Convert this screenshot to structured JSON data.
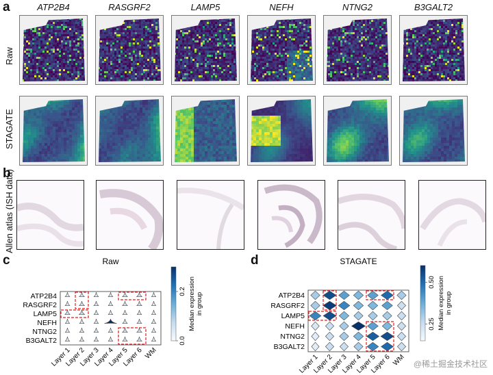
{
  "panels": {
    "a": "a",
    "b": "b",
    "c": "c",
    "d": "d"
  },
  "genes": [
    "ATP2B4",
    "RASGRF2",
    "LAMP5",
    "NEFH",
    "NTNG2",
    "B3GALT2"
  ],
  "row_labels": {
    "raw": "Raw",
    "stagate": "STAGATE",
    "allen": "Allen atlas (ISH data)"
  },
  "colors": {
    "viridis_dark": "#440154",
    "viridis_mid": "#21918c",
    "viridis_bright": "#fde725",
    "blues_dark": "#08306b",
    "highlight_box": "#e31a1c"
  },
  "chart_data": [
    {
      "type": "violin",
      "title": "Raw",
      "genes": [
        "ATP2B4",
        "RASGRF2",
        "LAMP5",
        "NEFH",
        "NTNG2",
        "B3GALT2"
      ],
      "categories": [
        "Layer 1",
        "Layer 2",
        "Layer 3",
        "Layer 4",
        "Layer 5",
        "Layer 6",
        "WM"
      ],
      "colorbar": {
        "label": "Median expression in group",
        "ticks": [
          "0.0",
          "0.2"
        ],
        "range": [
          0.0,
          0.3
        ]
      },
      "median_expression": [
        [
          0.03,
          0.05,
          0.03,
          0.03,
          0.05,
          0.06,
          0.02
        ],
        [
          0.03,
          0.06,
          0.04,
          0.03,
          0.05,
          0.05,
          0.02
        ],
        [
          0.05,
          0.07,
          0.03,
          0.03,
          0.03,
          0.03,
          0.02
        ],
        [
          0.02,
          0.03,
          0.03,
          0.3,
          0.04,
          0.04,
          0.03
        ],
        [
          0.02,
          0.03,
          0.03,
          0.03,
          0.05,
          0.05,
          0.02
        ],
        [
          0.02,
          0.03,
          0.03,
          0.03,
          0.04,
          0.05,
          0.02
        ]
      ],
      "highlights": [
        {
          "genes": [
            0,
            1
          ],
          "categories": [
            1,
            1
          ]
        },
        {
          "genes": [
            2,
            2
          ],
          "categories": [
            0,
            1
          ]
        },
        {
          "genes": [
            0,
            0
          ],
          "categories": [
            4,
            5
          ]
        },
        {
          "genes": [
            4,
            5
          ],
          "categories": [
            4,
            5
          ]
        }
      ]
    },
    {
      "type": "violin",
      "title": "STAGATE",
      "genes": [
        "ATP2B4",
        "RASGRF2",
        "LAMP5",
        "NEFH",
        "NTNG2",
        "B3GALT2"
      ],
      "categories": [
        "Layer 1",
        "Layer 2",
        "Layer 3",
        "Layer 4",
        "Layer 5",
        "Layer 6",
        "WM"
      ],
      "colorbar": {
        "label": "Median expression in group",
        "ticks": [
          "0.25",
          "0.50"
        ],
        "range": [
          0.15,
          0.6
        ]
      },
      "median_expression": [
        [
          0.3,
          0.55,
          0.4,
          0.35,
          0.4,
          0.5,
          0.3
        ],
        [
          0.3,
          0.58,
          0.45,
          0.35,
          0.35,
          0.4,
          0.25
        ],
        [
          0.45,
          0.55,
          0.35,
          0.3,
          0.3,
          0.3,
          0.25
        ],
        [
          0.22,
          0.25,
          0.3,
          0.6,
          0.4,
          0.35,
          0.25
        ],
        [
          0.2,
          0.25,
          0.3,
          0.35,
          0.52,
          0.55,
          0.25
        ],
        [
          0.2,
          0.25,
          0.25,
          0.3,
          0.45,
          0.5,
          0.25
        ]
      ],
      "highlights": [
        {
          "genes": [
            0,
            1
          ],
          "categories": [
            1,
            1
          ]
        },
        {
          "genes": [
            2,
            2
          ],
          "categories": [
            0,
            1
          ]
        },
        {
          "genes": [
            0,
            0
          ],
          "categories": [
            4,
            5
          ]
        },
        {
          "genes": [
            3,
            5
          ],
          "categories": [
            4,
            5
          ]
        }
      ]
    }
  ],
  "watermark": "@稀土掘金技术社区"
}
